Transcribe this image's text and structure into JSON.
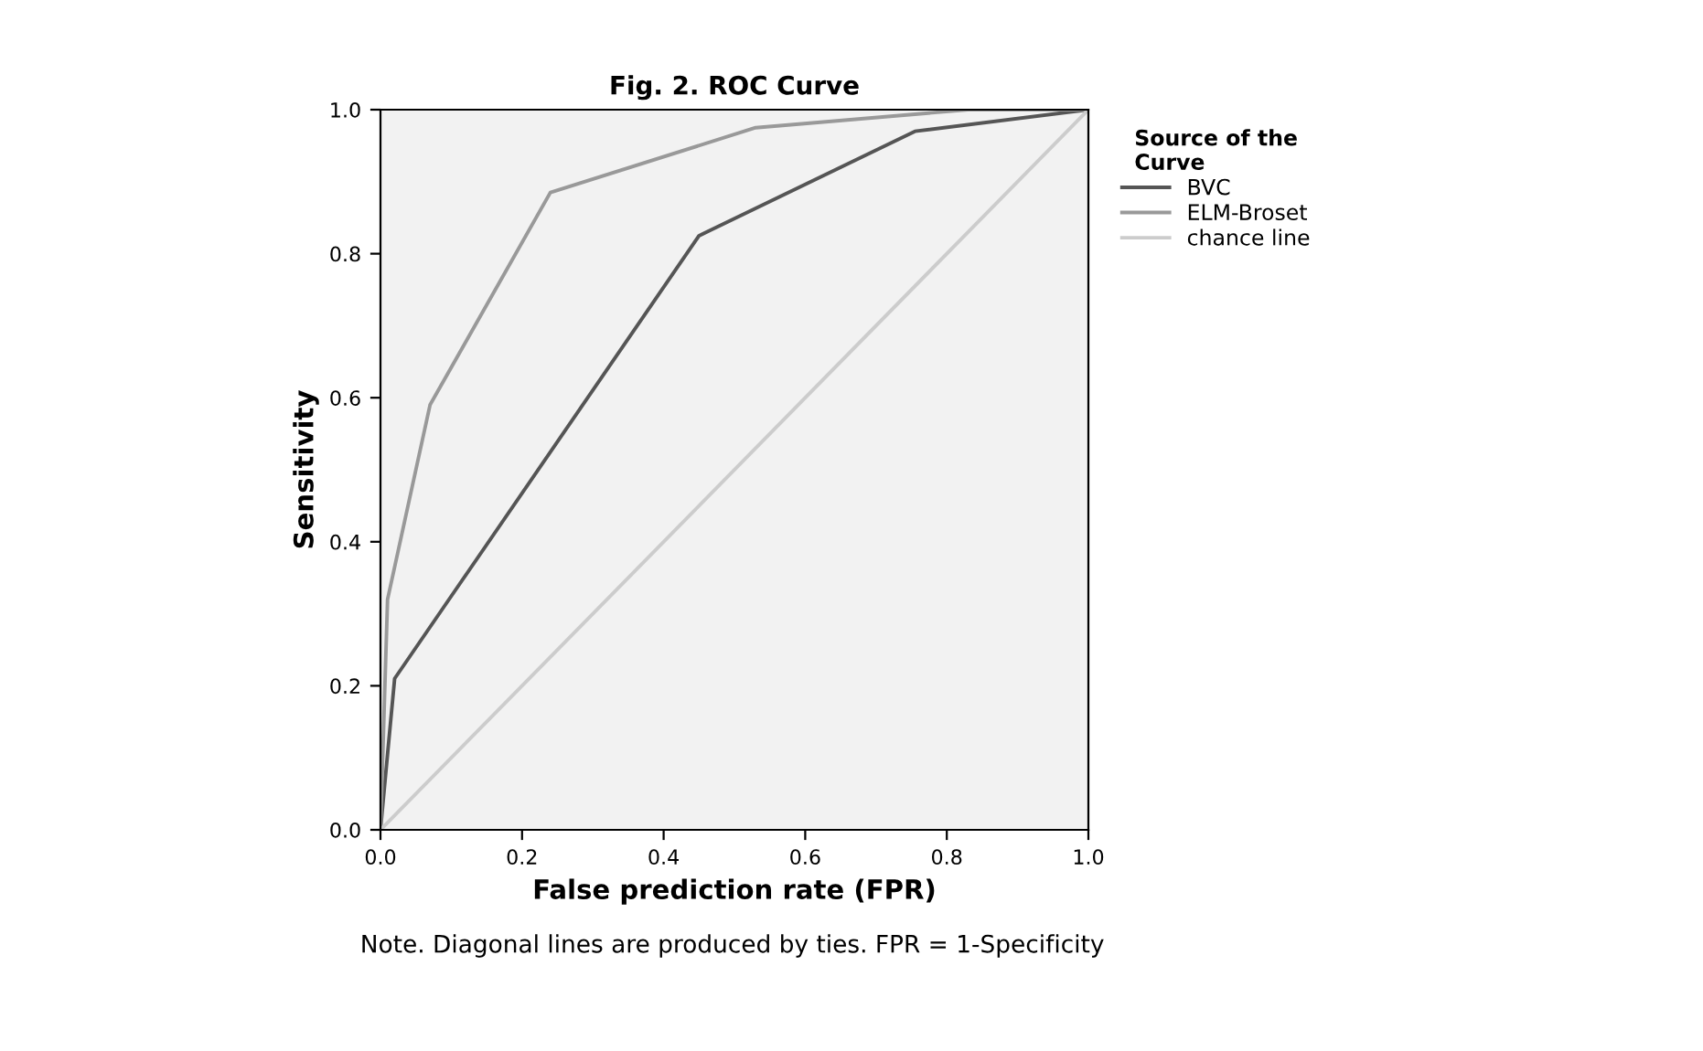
{
  "chart_data": {
    "type": "line",
    "title": "Fig. 2. ROC Curve",
    "xlabel": "False prediction rate (FPR)",
    "ylabel": "Sensitivity",
    "legend_title": "Source of the\nCurve",
    "legend": "right",
    "grid": false,
    "xlim": [
      0.0,
      1.0
    ],
    "ylim": [
      0.0,
      1.0
    ],
    "xticks": [
      {
        "value": 0,
        "label": "0.0"
      },
      {
        "value": 0.2,
        "label": "0.2"
      },
      {
        "value": 0.4,
        "label": "0.4"
      },
      {
        "value": 0.6,
        "label": "0.6"
      },
      {
        "value": 0.8,
        "label": "0.8"
      },
      {
        "value": 1,
        "label": "1.0"
      }
    ],
    "yticks": [
      {
        "value": 0,
        "label": "0.0"
      },
      {
        "value": 0.2,
        "label": "0.2"
      },
      {
        "value": 0.4,
        "label": "0.4"
      },
      {
        "value": 0.6,
        "label": "0.6"
      },
      {
        "value": 0.8,
        "label": "0.8"
      },
      {
        "value": 1,
        "label": "1.0"
      }
    ],
    "series": [
      {
        "name": "BVC",
        "color": "#555555",
        "x": [
          0,
          0.02,
          0.45,
          0.755,
          1
        ],
        "values": [
          0,
          0.21,
          0.825,
          0.97,
          1
        ]
      },
      {
        "name": "ELM-Broset",
        "color": "#999999",
        "x": [
          0,
          0.01,
          0.07,
          0.24,
          0.53,
          0.83,
          1
        ],
        "values": [
          0,
          0.32,
          0.59,
          0.885,
          0.975,
          1,
          1
        ]
      },
      {
        "name": "chance line",
        "color": "#cccccc",
        "x": [
          0,
          1
        ],
        "values": [
          0,
          1
        ]
      }
    ],
    "annotations": [
      "Note. Diagonal lines are produced by ties. FPR = 1-Specificity"
    ]
  }
}
